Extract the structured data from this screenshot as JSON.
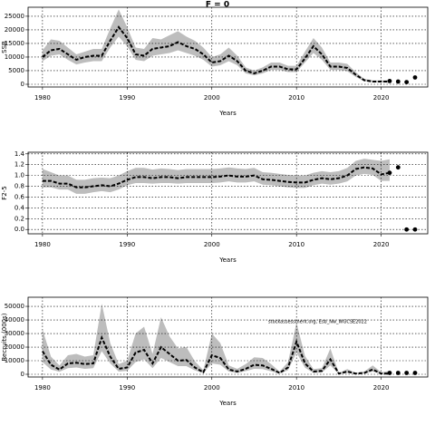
{
  "chart_data": [
    {
      "type": "line",
      "title": "F = 0",
      "ylabel": "SSB",
      "xlabel": "Years",
      "xlim": [
        1978.3,
        2025.5
      ],
      "xticks": [
        1980,
        1990,
        2000,
        2010,
        2020
      ],
      "ylim": [
        -1000,
        28300
      ],
      "yticks": [
        0,
        5000,
        10000,
        15000,
        20000,
        25000
      ],
      "grid": true,
      "x": [
        1980,
        1981,
        1982,
        1983,
        1984,
        1985,
        1986,
        1987,
        1988,
        1989,
        1990,
        1991,
        1992,
        1993,
        1994,
        1995,
        1996,
        1997,
        1998,
        1999,
        2000,
        2001,
        2002,
        2003,
        2004,
        2005,
        2006,
        2007,
        2008,
        2009,
        2010,
        2011,
        2012,
        2013,
        2014,
        2015,
        2016,
        2017,
        2018,
        2019,
        2020,
        2021
      ],
      "values": [
        10000,
        12500,
        13000,
        11000,
        9000,
        10000,
        10500,
        10500,
        16000,
        21000,
        17000,
        11000,
        10500,
        13000,
        13500,
        14000,
        15500,
        14000,
        13000,
        11000,
        8000,
        8500,
        10500,
        8500,
        5000,
        4000,
        5000,
        6500,
        6500,
        5500,
        5500,
        9500,
        14000,
        11000,
        6500,
        6500,
        6000,
        3500,
        1500,
        1000,
        1000,
        1000
      ],
      "lower": [
        8500,
        10500,
        11000,
        9000,
        7300,
        8000,
        8500,
        8500,
        13500,
        17500,
        14000,
        9000,
        8500,
        10500,
        11000,
        11500,
        12500,
        11500,
        10500,
        9000,
        6500,
        7000,
        8500,
        7000,
        4000,
        3300,
        4000,
        5300,
        5300,
        4500,
        4500,
        8000,
        11500,
        9000,
        5300,
        5300,
        4800,
        2700,
        1100,
        700,
        700,
        600
      ],
      "upper": [
        12500,
        16500,
        16000,
        13500,
        11000,
        12000,
        13000,
        13000,
        20500,
        27500,
        21000,
        13500,
        13000,
        17000,
        16500,
        18000,
        19500,
        17500,
        16000,
        13500,
        10000,
        11000,
        13500,
        10500,
        6200,
        5000,
        6200,
        8000,
        8000,
        6800,
        6800,
        12000,
        17000,
        13500,
        8000,
        8000,
        7500,
        4400,
        2000,
        1400,
        1400,
        1500
      ],
      "forecast_x": [
        2021,
        2022,
        2023,
        2024
      ],
      "forecast_values": [
        1200,
        1000,
        800,
        2500
      ]
    },
    {
      "type": "line",
      "ylabel": "F2-5",
      "xlabel": "Years",
      "xlim": [
        1978.3,
        2025.5
      ],
      "xticks": [
        1980,
        1990,
        2000,
        2010,
        2020
      ],
      "ylim": [
        -0.08,
        1.43
      ],
      "yticks": [
        {
          "value": 0,
          "label": "0.0"
        },
        0.2,
        0.4,
        0.6,
        0.8,
        {
          "value": 1,
          "label": "1.0"
        },
        1.2,
        1.4
      ],
      "grid": true,
      "x": [
        1980,
        1981,
        1982,
        1983,
        1984,
        1985,
        1986,
        1987,
        1988,
        1989,
        1990,
        1991,
        1992,
        1993,
        1994,
        1995,
        1996,
        1997,
        1998,
        1999,
        2000,
        2001,
        2002,
        2003,
        2004,
        2005,
        2006,
        2007,
        2008,
        2009,
        2010,
        2011,
        2012,
        2013,
        2014,
        2015,
        2016,
        2017,
        2018,
        2019,
        2020,
        2021
      ],
      "values": [
        0.9,
        0.9,
        0.85,
        0.85,
        0.78,
        0.78,
        0.8,
        0.82,
        0.8,
        0.85,
        0.92,
        0.97,
        0.97,
        0.95,
        0.97,
        0.97,
        0.95,
        0.97,
        0.97,
        0.97,
        0.97,
        0.98,
        1.0,
        0.98,
        0.98,
        1.0,
        0.93,
        0.92,
        0.9,
        0.88,
        0.87,
        0.87,
        0.92,
        0.95,
        0.93,
        0.95,
        1.0,
        1.12,
        1.15,
        1.13,
        1.02,
        1.05
      ],
      "lower": [
        0.78,
        0.78,
        0.74,
        0.74,
        0.66,
        0.66,
        0.69,
        0.71,
        0.69,
        0.74,
        0.82,
        0.86,
        0.86,
        0.85,
        0.86,
        0.86,
        0.85,
        0.86,
        0.86,
        0.86,
        0.86,
        0.87,
        0.89,
        0.87,
        0.87,
        0.89,
        0.83,
        0.82,
        0.8,
        0.78,
        0.77,
        0.77,
        0.82,
        0.85,
        0.83,
        0.85,
        0.89,
        1.0,
        1.03,
        1.01,
        0.9,
        0.9
      ],
      "upper": [
        1.12,
        1.06,
        1.0,
        1.0,
        0.92,
        0.92,
        0.95,
        0.96,
        0.95,
        1.0,
        1.08,
        1.14,
        1.14,
        1.11,
        1.13,
        1.12,
        1.1,
        1.12,
        1.12,
        1.12,
        1.12,
        1.13,
        1.15,
        1.13,
        1.12,
        1.14,
        1.06,
        1.05,
        1.03,
        1.01,
        1.0,
        1.0,
        1.05,
        1.08,
        1.06,
        1.08,
        1.14,
        1.27,
        1.31,
        1.29,
        1.27,
        1.3
      ],
      "forecast_x": [
        2021,
        2022,
        2023,
        2024
      ],
      "forecast_values": [
        1.05,
        1.15,
        0,
        0
      ]
    },
    {
      "type": "line",
      "ylabel": "Recruits (000s)",
      "xlabel": "Years",
      "annotation": "stockassessment.org, Esb_Nw_WGCSE2022",
      "xlim": [
        1978.3,
        2025.5
      ],
      "xticks": [
        1980,
        1990,
        2000,
        2010,
        2020
      ],
      "ylim": [
        -2000,
        56700
      ],
      "yticks": [
        0,
        10000,
        20000,
        30000,
        40000,
        50000
      ],
      "grid": true,
      "x": [
        1980,
        1981,
        1982,
        1983,
        1984,
        1985,
        1986,
        1987,
        1988,
        1989,
        1990,
        1991,
        1992,
        1993,
        1994,
        1995,
        1996,
        1997,
        1998,
        1999,
        2000,
        2001,
        2002,
        2003,
        2004,
        2005,
        2006,
        2007,
        2008,
        2009,
        2010,
        2011,
        2012,
        2013,
        2014,
        2015,
        2016,
        2017,
        2018,
        2019,
        2020,
        2021
      ],
      "values": [
        17000,
        7000,
        3500,
        8000,
        8500,
        7500,
        8000,
        27000,
        13000,
        4000,
        5000,
        16000,
        18000,
        8000,
        20000,
        15000,
        10000,
        10500,
        5000,
        1500,
        14000,
        12000,
        3500,
        2000,
        4000,
        7000,
        6500,
        4000,
        1000,
        5000,
        24000,
        8000,
        2000,
        2500,
        11000,
        500,
        2000,
        500,
        1000,
        3500,
        500,
        500
      ],
      "lower": [
        9000,
        3500,
        1800,
        4500,
        5000,
        4000,
        4500,
        17000,
        8000,
        2000,
        2500,
        9000,
        11000,
        4500,
        12000,
        9000,
        6000,
        6000,
        2800,
        800,
        8000,
        7000,
        2000,
        1000,
        2300,
        4000,
        3800,
        2200,
        500,
        3000,
        16000,
        4800,
        1000,
        1300,
        6500,
        250,
        1000,
        250,
        500,
        2000,
        250,
        200
      ],
      "upper": [
        33000,
        13000,
        6500,
        14000,
        15000,
        13000,
        14000,
        52000,
        23000,
        7500,
        10000,
        30000,
        35000,
        15000,
        42000,
        28000,
        19000,
        20000,
        9500,
        3000,
        30000,
        23000,
        6500,
        4000,
        7500,
        12500,
        12000,
        7500,
        2000,
        9000,
        38000,
        13500,
        3800,
        4500,
        19000,
        1000,
        3800,
        1000,
        2000,
        6500,
        1500,
        2500
      ],
      "forecast_x": [
        2021,
        2022,
        2023,
        2024
      ],
      "forecast_values": [
        1000,
        1000,
        1000,
        1000
      ]
    }
  ]
}
